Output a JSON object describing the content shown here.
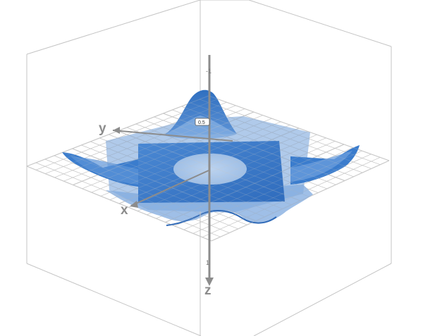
{
  "axes": {
    "x_label": "x",
    "y_label": "y",
    "z_label": "z",
    "z_tick_top": "-1",
    "z_tick_bottom": "1",
    "z_direction": "down"
  },
  "badge": {
    "text": "0.5"
  },
  "colors": {
    "surface_front": "#3c7fd0",
    "surface_back": "#6f9fd8",
    "surface_light": "#a9c6ea",
    "grid": "#c8c8c8",
    "box": "#bdbdbd",
    "axis": "#8c8c8c"
  },
  "view": {
    "projection": "3d-perspective",
    "grid_plane": "z=0",
    "bounding_box": true
  }
}
